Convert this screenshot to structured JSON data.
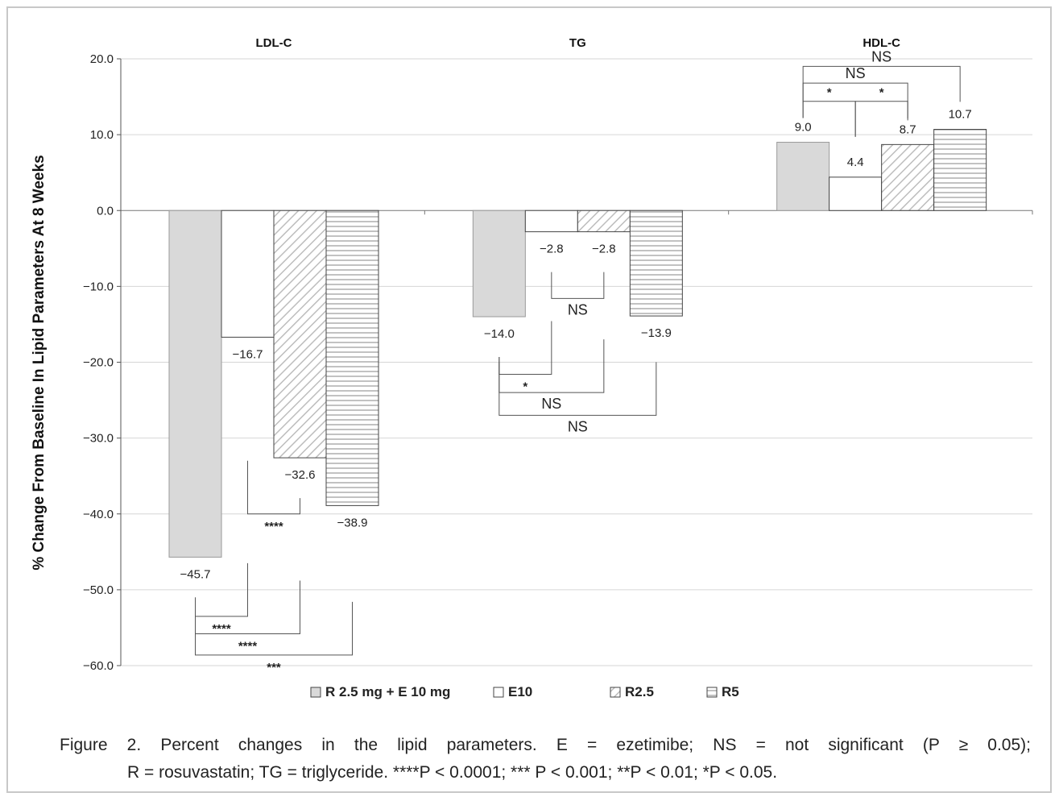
{
  "chart_data": {
    "type": "bar",
    "panels": [
      "LDL-C",
      "TG",
      "HDL-C"
    ],
    "series": [
      {
        "name": "R 2.5 mg + E 10 mg",
        "pattern": "solid-gray",
        "values": [
          -45.7,
          -14.0,
          9.0
        ]
      },
      {
        "name": "E10",
        "pattern": "white",
        "values": [
          -16.7,
          -2.8,
          4.4
        ]
      },
      {
        "name": "R2.5",
        "pattern": "diagonal",
        "values": [
          -32.6,
          -2.8,
          8.7
        ]
      },
      {
        "name": "R5",
        "pattern": "horizontal",
        "values": [
          -38.9,
          -13.9,
          10.7
        ]
      }
    ],
    "value_labels": [
      [
        "−45.7",
        "−14.0",
        "9.0"
      ],
      [
        "−16.7",
        "−2.8",
        "4.4"
      ],
      [
        "−32.6",
        "−2.8",
        "8.7"
      ],
      [
        "−38.9",
        "−13.9",
        "10.7"
      ]
    ],
    "ylabel": "% Change From Baseline In Lipid Parameters At 8 Weeks",
    "ylim": [
      -60,
      20
    ],
    "yticks": [
      20,
      10,
      0,
      -10,
      -20,
      -30,
      -40,
      -50,
      -60
    ],
    "ytick_labels": [
      "20.0",
      "10.0",
      "0.0",
      "−10.0",
      "−20.0",
      "−30.0",
      "−40.0",
      "−50.0",
      "−60.0"
    ],
    "grid": true,
    "legend_position": "bottom",
    "significance": [
      {
        "panel": 0,
        "a": 0,
        "b": 1,
        "label": "****",
        "y": -53.5,
        "side": "below"
      },
      {
        "panel": 0,
        "a": 1,
        "b": 2,
        "label": "****",
        "y": -40.0,
        "side": "below"
      },
      {
        "panel": 0,
        "a": 0,
        "b": 2,
        "label": "****",
        "y": -55.8,
        "side": "below"
      },
      {
        "panel": 0,
        "a": 0,
        "b": 3,
        "label": "***",
        "y": -58.6,
        "side": "below"
      },
      {
        "panel": 1,
        "a": 1,
        "b": 2,
        "label": "NS",
        "y": -11.6,
        "side": "below"
      },
      {
        "panel": 1,
        "a": 0,
        "b": 1,
        "label": "*",
        "y": -21.6,
        "side": "below"
      },
      {
        "panel": 1,
        "a": 0,
        "b": 2,
        "label": "NS",
        "y": -24.0,
        "side": "below"
      },
      {
        "panel": 1,
        "a": 0,
        "b": 3,
        "label": "NS",
        "y": -27.0,
        "side": "below"
      },
      {
        "panel": 2,
        "a": 0,
        "b": 1,
        "label": "*",
        "y": 14.4,
        "side": "above"
      },
      {
        "panel": 2,
        "a": 1,
        "b": 2,
        "label": "*",
        "y": 14.4,
        "side": "above"
      },
      {
        "panel": 2,
        "a": 0,
        "b": 2,
        "label": "NS",
        "y": 16.8,
        "side": "above"
      },
      {
        "panel": 2,
        "a": 0,
        "b": 3,
        "label": "NS",
        "y": 19.0,
        "side": "above"
      }
    ]
  },
  "caption": {
    "line1": "Figure 2. Percent changes in the lipid parameters. E = ezetimibe; NS = not significant (P ≥ 0.05);",
    "line2": "R = rosuvastatin; TG = triglyceride. ****P < 0.0001; *** P < 0.001; **P < 0.01; *P < 0.05."
  }
}
